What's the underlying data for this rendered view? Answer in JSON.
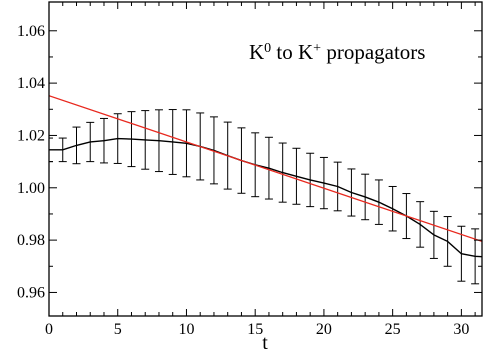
{
  "chart_data": {
    "type": "line",
    "annotation": {
      "parts": [
        {
          "text": "K",
          "sup": false
        },
        {
          "text": "0",
          "sup": true
        },
        {
          "text": " to K",
          "sup": false
        },
        {
          "text": "+",
          "sup": true
        },
        {
          "text": " propagators",
          "sup": false
        }
      ]
    },
    "xlabel": "t",
    "ylabel": "",
    "xlim": [
      0,
      31.5
    ],
    "ylim": [
      0.951,
      1.071
    ],
    "x_ticks": [
      "0",
      "5",
      "10",
      "15",
      "20",
      "25",
      "30"
    ],
    "x_tick_values": [
      0,
      5,
      10,
      15,
      20,
      25,
      30
    ],
    "y_ticks": [
      "0.96",
      "0.98",
      "1.00",
      "1.02",
      "1.04",
      "1.06"
    ],
    "y_tick_values": [
      0.96,
      0.98,
      1.0,
      1.02,
      1.04,
      1.06
    ],
    "grid": false,
    "legend": "none",
    "series": [
      {
        "color": "#000000",
        "kind": "line_with_errorbars",
        "x": [
          0,
          1,
          2,
          3,
          4,
          5,
          6,
          7,
          8,
          9,
          10,
          11,
          12,
          13,
          14,
          15,
          16,
          17,
          18,
          19,
          20,
          21,
          22,
          23,
          24,
          25,
          26,
          27,
          28,
          29,
          30,
          31,
          32
        ],
        "y": [
          1.0145,
          1.0145,
          1.0162,
          1.0175,
          1.018,
          1.0188,
          1.0186,
          1.0183,
          1.018,
          1.0175,
          1.017,
          1.0158,
          1.0143,
          1.0123,
          1.0104,
          1.0088,
          1.0075,
          1.0058,
          1.0044,
          1.003,
          1.0018,
          1.0005,
          0.9982,
          0.9965,
          0.9945,
          0.992,
          0.9892,
          0.986,
          0.982,
          0.9795,
          0.9748,
          0.9738,
          0.9735
        ],
        "err": [
          0.0045,
          0.0045,
          0.007,
          0.0075,
          0.0085,
          0.0095,
          0.0105,
          0.0112,
          0.0118,
          0.0124,
          0.0128,
          0.0128,
          0.0128,
          0.0128,
          0.0125,
          0.0122,
          0.0118,
          0.0113,
          0.0107,
          0.0102,
          0.0098,
          0.0093,
          0.009,
          0.0087,
          0.0085,
          0.0085,
          0.0086,
          0.0087,
          0.009,
          0.0095,
          0.0105,
          0.0105,
          0.0105
        ]
      },
      {
        "color": "#e8281e",
        "kind": "fit_line",
        "x": [
          0,
          31.5
        ],
        "y": [
          1.0352,
          0.9795
        ]
      }
    ]
  }
}
